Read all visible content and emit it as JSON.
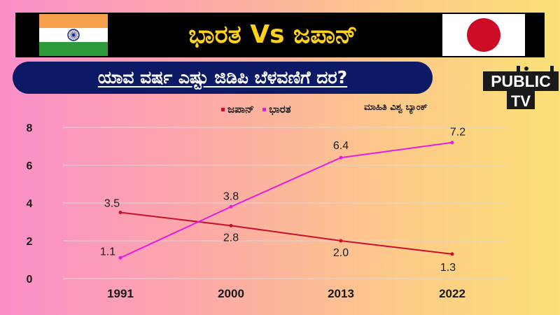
{
  "header": {
    "title": "ಭಾರತ Vs ಜಪಾನ್",
    "subtitle": "ಯಾವ ವರ್ಷ ಎಷ್ಟು ಜಿಡಿಪಿ ಬೆಳವಣಿಗೆ ದರ?",
    "source": "ಮಾಹಿತಿ ವಿಶ್ವ ಬ್ಯಾಂಕ್"
  },
  "logo": {
    "line1": "PUBLIC",
    "line2": "TV"
  },
  "colors": {
    "japan": "#c8102e",
    "india": "#e11ee0",
    "grid": "#d8d8d8",
    "title_text": "#ffd21a"
  },
  "chart_data": {
    "type": "line",
    "categories": [
      "1991",
      "2000",
      "2013",
      "2022"
    ],
    "series": [
      {
        "name": "ಜಪಾನ್",
        "values": [
          3.5,
          2.8,
          2.0,
          1.3
        ]
      },
      {
        "name": "ಭಾರತ",
        "values": [
          1.1,
          3.8,
          6.4,
          7.2
        ]
      }
    ],
    "y_ticks": [
      "0",
      "2",
      "4",
      "6",
      "8"
    ],
    "ylim": [
      0,
      8
    ],
    "grid": true,
    "legend": "top-center",
    "title": "ಯಾವ ವರ್ಷ ಎಷ್ಟು ಜಿಡಿಪಿ ಬೆಳವಣಿಗೆ ದರ?",
    "source": "ಮಾಹಿತಿ ವಿಶ್ವ ಬ್ಯಾಂಕ್"
  }
}
